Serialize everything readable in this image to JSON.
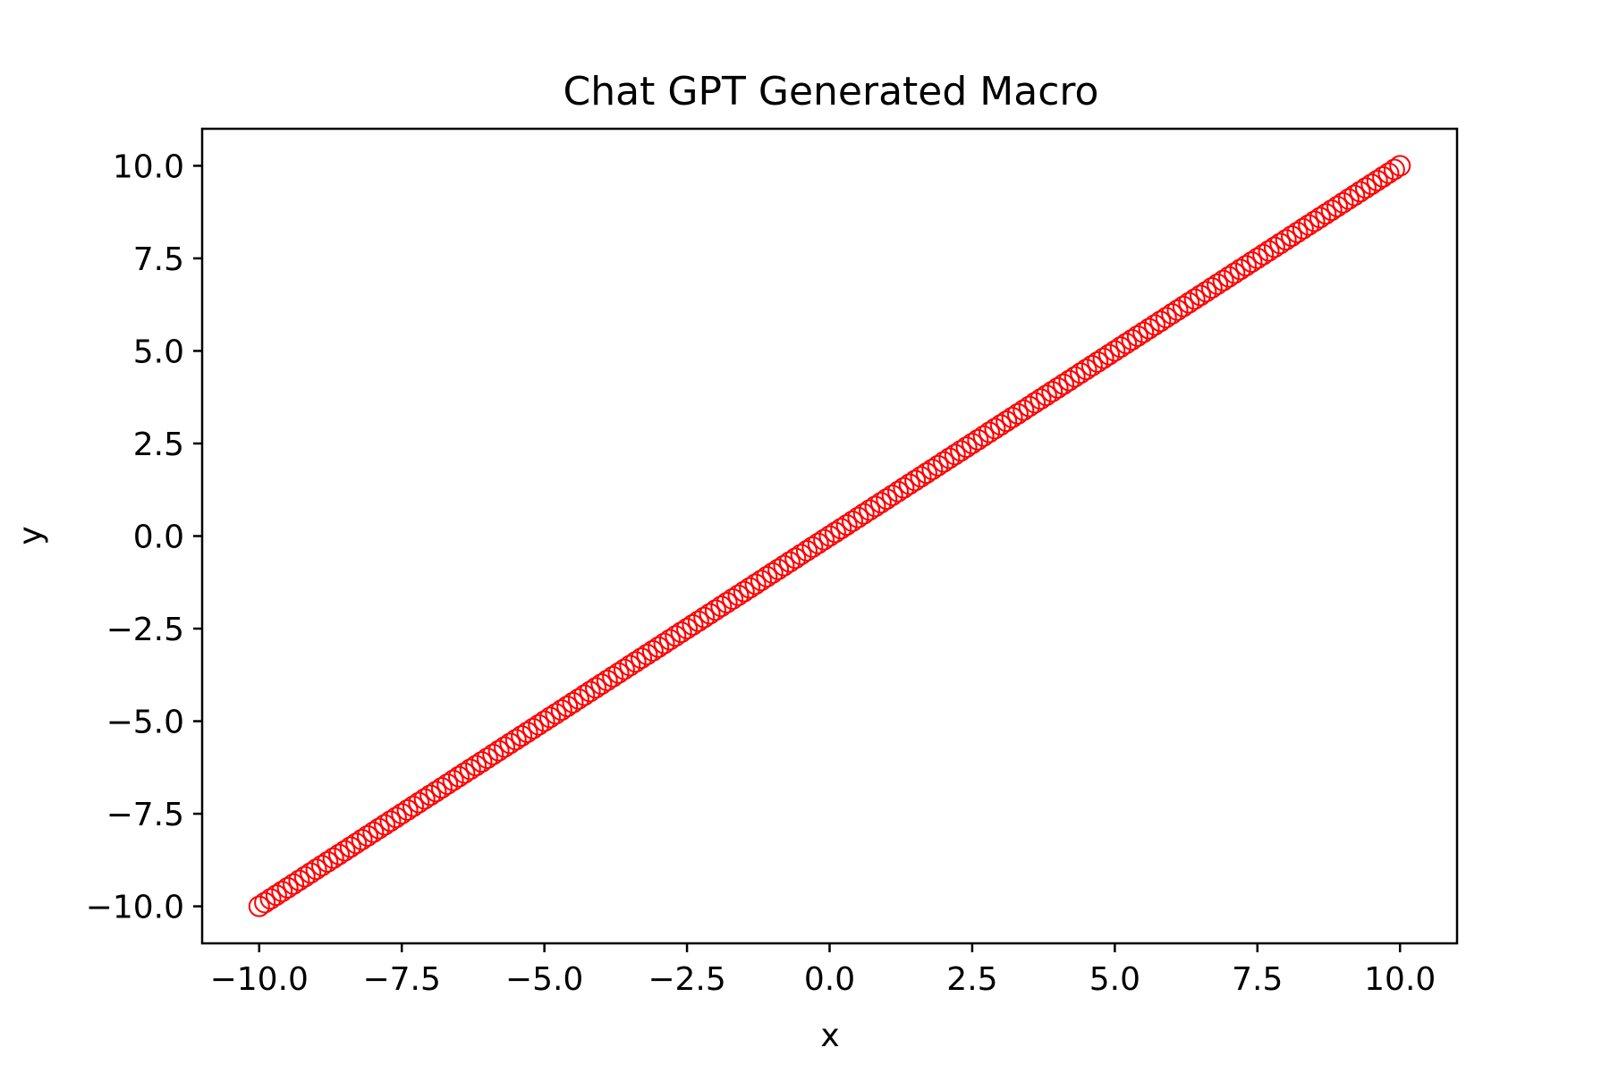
{
  "chart_data": {
    "type": "scatter",
    "title": "Chat GPT Generated Macro",
    "xlabel": "x",
    "ylabel": "y",
    "xlim": [
      -11.0,
      11.0
    ],
    "ylim": [
      -11.0,
      11.0
    ],
    "x_ticks": [
      -10.0,
      -7.5,
      -5.0,
      -2.5,
      0.0,
      2.5,
      5.0,
      7.5,
      10.0
    ],
    "y_ticks": [
      -10.0,
      -7.5,
      -5.0,
      -2.5,
      0.0,
      2.5,
      5.0,
      7.5,
      10.0
    ],
    "x_tick_labels": [
      "−10.0",
      "−7.5",
      "−5.0",
      "−2.5",
      "0.0",
      "2.5",
      "5.0",
      "7.5",
      "10.0"
    ],
    "y_tick_labels": [
      "−10.0",
      "−7.5",
      "−5.0",
      "−2.5",
      "0.0",
      "2.5",
      "5.0",
      "7.5",
      "10.0"
    ],
    "grid": false,
    "marker": "open-circle",
    "colors": {
      "marker": "#ff0000",
      "axes": "#000000",
      "background": "#ffffff"
    },
    "series": [
      {
        "relationship": "y = x",
        "x_range": [
          -10.0,
          10.0
        ],
        "point_count": 201
      }
    ]
  }
}
